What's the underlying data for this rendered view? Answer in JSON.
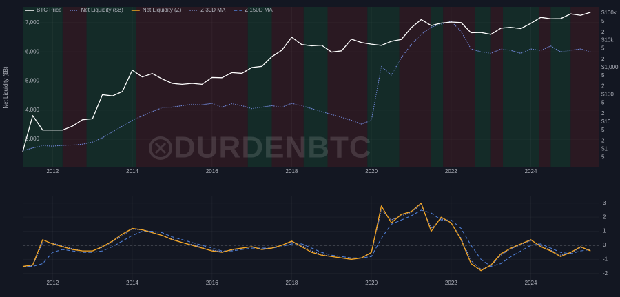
{
  "watermark": "DURDENBTC",
  "chart_data": [
    {
      "type": "line",
      "y_label": "Net Liquidity ($B)",
      "legend": "top-left",
      "grid": true,
      "y2_scale": "log",
      "x": [
        2011.25,
        2011.5,
        2011.75,
        2012,
        2012.25,
        2012.5,
        2012.75,
        2013,
        2013.25,
        2013.5,
        2013.75,
        2014,
        2014.25,
        2014.5,
        2014.75,
        2015,
        2015.25,
        2015.5,
        2015.75,
        2016,
        2016.25,
        2016.5,
        2016.75,
        2017,
        2017.25,
        2017.5,
        2017.75,
        2018,
        2018.25,
        2018.5,
        2018.75,
        2019,
        2019.25,
        2019.5,
        2019.75,
        2020,
        2020.25,
        2020.5,
        2020.75,
        2021,
        2021.25,
        2021.5,
        2021.75,
        2022,
        2022.25,
        2022.5,
        2022.75,
        2023,
        2023.25,
        2023.5,
        2023.75,
        2024,
        2024.25,
        2024.5,
        2024.75,
        2025,
        2025.25,
        2025.5
      ],
      "xlim": [
        2011.25,
        2025.72
      ],
      "xticks": [
        2012,
        2014,
        2016,
        2018,
        2020,
        2022,
        2024
      ],
      "ylim": [
        2030,
        7545
      ],
      "yticks": [
        {
          "value": 3000,
          "label": "3,000"
        },
        {
          "value": 4000,
          "label": "4,000"
        },
        {
          "value": 5000,
          "label": "5,000"
        },
        {
          "value": 6000,
          "label": "6,000"
        },
        {
          "value": 7000,
          "label": "7,000"
        }
      ],
      "y2lim": [
        0.21,
        170000
      ],
      "y2ticks": [
        {
          "value": 0.5,
          "label": "5"
        },
        {
          "value": 1,
          "label": "$1"
        },
        2,
        5,
        {
          "value": 10,
          "label": "$10"
        },
        {
          "value": 20,
          "label": "2"
        },
        {
          "value": 50,
          "label": "5"
        },
        {
          "value": 100,
          "label": "$100"
        },
        {
          "value": 200,
          "label": "2"
        },
        {
          "value": 500,
          "label": "5"
        },
        {
          "value": 1000,
          "label": "$1,000"
        },
        {
          "value": 2000,
          "label": "2"
        },
        {
          "value": 5000,
          "label": "5"
        },
        {
          "value": 10000,
          "label": "$10k"
        },
        {
          "value": 20000,
          "label": "2"
        },
        {
          "value": 50000,
          "label": "5"
        },
        {
          "value": 100000,
          "label": "$100k"
        }
      ],
      "regions": [
        {
          "start": 2011.25,
          "end": 2012.25,
          "color": "#142b28"
        },
        {
          "start": 2012.25,
          "end": 2012.85,
          "color": "#2a1922"
        },
        {
          "start": 2012.85,
          "end": 2014.1,
          "color": "#142b28"
        },
        {
          "start": 2014.1,
          "end": 2016.9,
          "color": "#2a1922"
        },
        {
          "start": 2016.9,
          "end": 2017.5,
          "color": "#142b28"
        },
        {
          "start": 2017.5,
          "end": 2018.3,
          "color": "#2a1922"
        },
        {
          "start": 2018.3,
          "end": 2018.9,
          "color": "#142b28"
        },
        {
          "start": 2018.9,
          "end": 2019.9,
          "color": "#2a1922"
        },
        {
          "start": 2019.9,
          "end": 2020.7,
          "color": "#142b28"
        },
        {
          "start": 2020.7,
          "end": 2021.5,
          "color": "#2a1922"
        },
        {
          "start": 2021.5,
          "end": 2021.8,
          "color": "#142b28"
        },
        {
          "start": 2021.8,
          "end": 2022.6,
          "color": "#2a1922"
        },
        {
          "start": 2022.6,
          "end": 2023.0,
          "color": "#142b28"
        },
        {
          "start": 2023.0,
          "end": 2023.3,
          "color": "#2a1922"
        },
        {
          "start": 2023.3,
          "end": 2024.2,
          "color": "#142b28"
        },
        {
          "start": 2024.2,
          "end": 2024.5,
          "color": "#2a1922"
        },
        {
          "start": 2024.5,
          "end": 2025.0,
          "color": "#142b28"
        },
        {
          "start": 2025.0,
          "end": 2025.72,
          "color": "#2a1922"
        }
      ],
      "series": [
        {
          "name": "BTC Price",
          "color": "#ffffff",
          "axis": "y2",
          "dash": "solid",
          "values": [
            0.8,
            17,
            5,
            5,
            5,
            7,
            12,
            13,
            100,
            90,
            130,
            800,
            450,
            600,
            380,
            260,
            240,
            260,
            240,
            430,
            420,
            650,
            610,
            1000,
            1100,
            2500,
            4300,
            13000,
            7000,
            6300,
            6600,
            3700,
            4100,
            11000,
            8300,
            7200,
            6500,
            9200,
            10800,
            29000,
            58000,
            35000,
            43000,
            47000,
            45000,
            19000,
            19500,
            16600,
            28000,
            30000,
            27000,
            42000,
            70000,
            62000,
            63000,
            94000,
            83000,
            107000
          ]
        },
        {
          "name": "Net Liquidity ($B)",
          "color": "#6f86d6",
          "dash": "dotted",
          "values": [
            2600,
            2700,
            2780,
            2760,
            2790,
            2800,
            2830,
            2900,
            3050,
            3250,
            3450,
            3650,
            3800,
            3950,
            4080,
            4100,
            4150,
            4200,
            4180,
            4230,
            4100,
            4220,
            4150,
            4050,
            4100,
            4150,
            4100,
            4230,
            4150,
            4050,
            3950,
            3850,
            3750,
            3650,
            3520,
            3650,
            5500,
            5200,
            5800,
            6250,
            6600,
            6850,
            6950,
            7050,
            6700,
            6100,
            6000,
            5950,
            6100,
            6050,
            5950,
            6100,
            6050,
            6200,
            6000,
            6050,
            6100,
            6000
          ]
        }
      ]
    },
    {
      "type": "line",
      "grid": true,
      "zero_line": true,
      "x": [
        2011.25,
        2011.5,
        2011.75,
        2012,
        2012.25,
        2012.5,
        2012.75,
        2013,
        2013.25,
        2013.5,
        2013.75,
        2014,
        2014.25,
        2014.5,
        2014.75,
        2015,
        2015.25,
        2015.5,
        2015.75,
        2016,
        2016.25,
        2016.5,
        2016.75,
        2017,
        2017.25,
        2017.5,
        2017.75,
        2018,
        2018.25,
        2018.5,
        2018.75,
        2019,
        2019.25,
        2019.5,
        2019.75,
        2020,
        2020.25,
        2020.5,
        2020.75,
        2021,
        2021.25,
        2021.5,
        2021.75,
        2022,
        2022.25,
        2022.5,
        2022.75,
        2023,
        2023.25,
        2023.5,
        2023.75,
        2024,
        2024.25,
        2024.5,
        2024.75,
        2025,
        2025.25,
        2025.5
      ],
      "xlim": [
        2011.25,
        2025.72
      ],
      "xticks": [
        2012,
        2014,
        2016,
        2018,
        2020,
        2022,
        2024
      ],
      "ylim": [
        -3.14,
        3.48
      ],
      "yticks": [
        -2,
        -1,
        0,
        1,
        2,
        3
      ],
      "series": [
        {
          "name": "Net Liquidity (Z)",
          "color": "#f5a623",
          "dash": "solid",
          "values": [
            -1.5,
            -1.4,
            0.4,
            0.1,
            -0.1,
            -0.3,
            -0.4,
            -0.4,
            -0.1,
            0.3,
            0.8,
            1.2,
            1.1,
            0.9,
            0.7,
            0.4,
            0.2,
            0.0,
            -0.2,
            -0.4,
            -0.5,
            -0.3,
            -0.2,
            -0.1,
            -0.3,
            -0.2,
            0.0,
            0.3,
            -0.1,
            -0.5,
            -0.7,
            -0.8,
            -0.9,
            -1.0,
            -0.9,
            -0.5,
            2.8,
            1.6,
            2.2,
            2.4,
            3.0,
            1.0,
            2.0,
            1.6,
            0.4,
            -1.3,
            -1.8,
            -1.4,
            -0.6,
            -0.2,
            0.1,
            0.4,
            -0.1,
            -0.4,
            -0.8,
            -0.5,
            -0.1,
            -0.4
          ]
        },
        {
          "name": "Z 30D MA",
          "color": "#7f93d8",
          "dash": "dotted",
          "values": [
            -1.5,
            -1.45,
            0.2,
            0.15,
            -0.05,
            -0.25,
            -0.4,
            -0.4,
            -0.15,
            0.25,
            0.7,
            1.15,
            1.1,
            0.95,
            0.7,
            0.45,
            0.2,
            0.05,
            -0.15,
            -0.35,
            -0.45,
            -0.35,
            -0.2,
            -0.1,
            -0.25,
            -0.2,
            0.0,
            0.25,
            0.0,
            -0.4,
            -0.65,
            -0.8,
            -0.9,
            -0.95,
            -0.9,
            -0.55,
            2.5,
            1.8,
            2.1,
            2.35,
            2.9,
            1.2,
            1.9,
            1.6,
            0.5,
            -1.1,
            -1.7,
            -1.45,
            -0.7,
            -0.25,
            0.05,
            0.35,
            0.0,
            -0.35,
            -0.7,
            -0.55,
            -0.15,
            -0.35
          ]
        },
        {
          "name": "Z 150D MA",
          "color": "#4f7fd6",
          "dash": "dashed",
          "values": [
            -1.5,
            -1.5,
            -1.3,
            -0.5,
            -0.3,
            -0.4,
            -0.5,
            -0.5,
            -0.4,
            -0.1,
            0.3,
            0.7,
            1.0,
            1.0,
            0.9,
            0.6,
            0.4,
            0.2,
            0.0,
            -0.2,
            -0.4,
            -0.4,
            -0.3,
            -0.2,
            -0.2,
            -0.2,
            -0.1,
            0.1,
            0.1,
            -0.2,
            -0.5,
            -0.7,
            -0.8,
            -0.9,
            -0.9,
            -0.8,
            0.5,
            1.5,
            1.8,
            2.1,
            2.5,
            2.3,
            1.8,
            1.8,
            1.2,
            0.0,
            -1.0,
            -1.5,
            -1.3,
            -0.8,
            -0.4,
            0.0,
            0.1,
            -0.2,
            -0.5,
            -0.6,
            -0.4,
            -0.3
          ]
        }
      ]
    }
  ]
}
